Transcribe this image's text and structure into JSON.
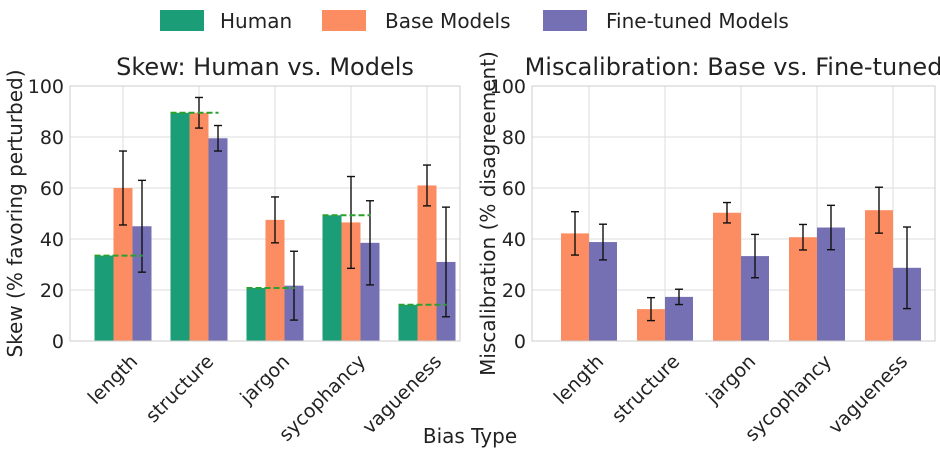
{
  "legend": [
    {
      "key": "human",
      "label": "Human",
      "color": "#1b9e77"
    },
    {
      "key": "base",
      "label": "Base Models",
      "color": "#fc8d62"
    },
    {
      "key": "finetuned",
      "label": "Fine-tuned Models",
      "color": "#7570b3"
    }
  ],
  "xlabel": "Bias Type",
  "chart_data": [
    {
      "type": "bar",
      "title": "Skew: Human vs. Models",
      "xlabel": "Bias Type",
      "ylabel": "Skew (% favoring perturbed)",
      "ylim": [
        0,
        100
      ],
      "yticks": [
        0,
        20,
        40,
        60,
        80,
        100
      ],
      "grid": true,
      "categories": [
        "length",
        "structure",
        "jargon",
        "sycophancy",
        "vagueness"
      ],
      "series": [
        {
          "name": "Human",
          "key": "human",
          "values": [
            33.5,
            89.5,
            20.8,
            49.3,
            14.2
          ],
          "errors": null
        },
        {
          "name": "Base Models",
          "key": "base",
          "values": [
            60,
            89.5,
            47.5,
            46.5,
            61
          ],
          "errors": [
            14.5,
            6,
            9,
            18,
            8
          ]
        },
        {
          "name": "Fine-tuned Models",
          "key": "finetuned",
          "values": [
            45,
            79.5,
            21.7,
            38.5,
            31
          ],
          "errors": [
            18,
            5,
            13.5,
            16.5,
            21.5
          ]
        }
      ],
      "reference_lines": {
        "description": "dashed green line at human value",
        "values": [
          33.5,
          89.5,
          20.8,
          49.3,
          14.2
        ],
        "color": "#2ca02c"
      }
    },
    {
      "type": "bar",
      "title": "Miscalibration: Base vs. Fine-tuned",
      "xlabel": "Bias Type",
      "ylabel": "Miscalibration (% disagreement)",
      "ylim": [
        0,
        100
      ],
      "yticks": [
        0,
        20,
        40,
        60,
        80,
        100
      ],
      "grid": true,
      "categories": [
        "length",
        "structure",
        "jargon",
        "sycophancy",
        "vagueness"
      ],
      "series": [
        {
          "name": "Base Models",
          "key": "base",
          "values": [
            42.2,
            12.5,
            50.3,
            40.7,
            51.3
          ],
          "errors": [
            8.5,
            4.5,
            4,
            5,
            9
          ]
        },
        {
          "name": "Fine-tuned Models",
          "key": "finetuned",
          "values": [
            38.8,
            17.3,
            33.3,
            44.5,
            28.7
          ],
          "errors": [
            7,
            3,
            8.5,
            8.7,
            16
          ]
        }
      ]
    }
  ]
}
